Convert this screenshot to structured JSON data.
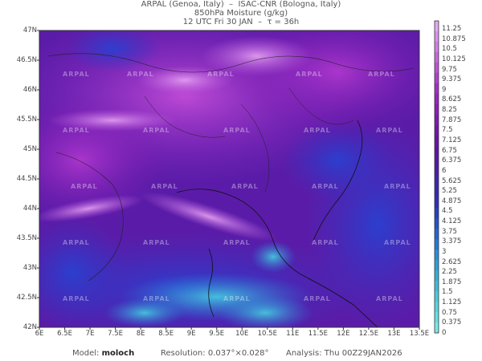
{
  "header": {
    "line1": "ARPAL (Genoa, Italy)  –  ISAC-CNR (Bologna, Italy)",
    "line2": "850hPa Moisture (g/kg)",
    "line3": "12 UTC Fri 30 JAN  –  τ = 36h"
  },
  "axes": {
    "lat_labels": [
      "47N",
      "46.5N",
      "46N",
      "45.5N",
      "45N",
      "44.5N",
      "44N",
      "43.5N",
      "43N",
      "42.5N",
      "42N"
    ],
    "lon_labels": [
      "6E",
      "6.5E",
      "7E",
      "7.5E",
      "8E",
      "8.5E",
      "9E",
      "9.5E",
      "10E",
      "10.5E",
      "11E",
      "11.5E",
      "12E",
      "12.5E",
      "13E",
      "13.5E"
    ]
  },
  "colorbar": {
    "labels": [
      "11.25",
      "10.875",
      "10.5",
      "10.125",
      "9.75",
      "9.375",
      "9",
      "8.625",
      "8.25",
      "7.875",
      "7.5",
      "7.125",
      "6.75",
      "6.375",
      "6",
      "5.625",
      "5.25",
      "4.875",
      "4.5",
      "4.125",
      "3.75",
      "3.375",
      "3",
      "2.625",
      "2.25",
      "1.875",
      "1.5",
      "1.125",
      "0.75",
      "0.375",
      "0"
    ],
    "colors": [
      "#e4a8f4",
      "#da92ee",
      "#d27fe8",
      "#c868e0",
      "#bd52d8",
      "#b23fd0",
      "#a52dc6",
      "#9a22bd",
      "#8e1cb6",
      "#8318b0",
      "#7714aa",
      "#6b12a6",
      "#5f14a4",
      "#5418a6",
      "#4a1eaa",
      "#3f24ae",
      "#3528b2",
      "#2c30ba",
      "#2640c4",
      "#2352cc",
      "#2266d2",
      "#247ad6",
      "#2a8eda",
      "#309edc",
      "#36aedc",
      "#40bcdc",
      "#4ccade",
      "#58d6e0",
      "#66e0e4",
      "#78eae8"
    ]
  },
  "footer": {
    "model_label": "Model:",
    "model_value": "moloch",
    "resolution_label": "Resolution:",
    "resolution_value": "0.037°×0.028°",
    "analysis_label": "Analysis:",
    "analysis_value": "Thu 00Z29JAN2026"
  },
  "watermark": "ARPAL"
}
